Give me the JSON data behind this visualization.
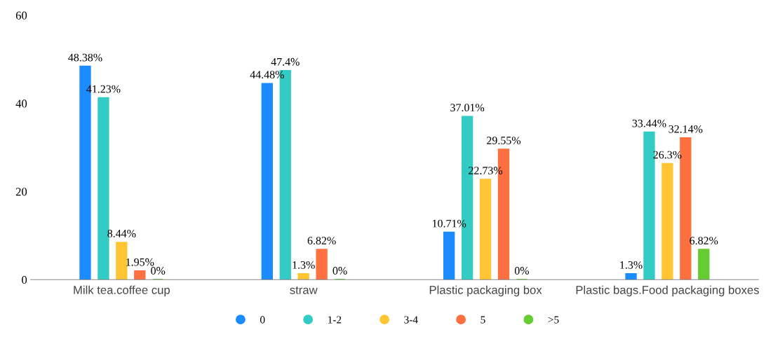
{
  "chart_data": {
    "type": "bar",
    "categories": [
      "Milk tea.coffee cup",
      "straw",
      "Plastic packaging box",
      "Plastic bags.Food packaging boxes"
    ],
    "series": [
      {
        "name": "0",
        "color": "#1a8cff",
        "values": [
          48.38,
          44.48,
          10.71,
          1.3
        ],
        "value_labels": [
          "48.38%",
          "44.48%",
          "10.71%",
          "1.3%"
        ]
      },
      {
        "name": "1-2",
        "color": "#33ccc4",
        "values": [
          41.23,
          47.4,
          37.01,
          33.44
        ],
        "value_labels": [
          "41.23%",
          "47.4%",
          "37.01%",
          "33.44%"
        ]
      },
      {
        "name": "3-4",
        "color": "#ffc533",
        "values": [
          8.44,
          1.3,
          22.73,
          26.3
        ],
        "value_labels": [
          "8.44%",
          "1.3%",
          "22.73%",
          "26.3%"
        ]
      },
      {
        "name": "5",
        "color": "#ff7040",
        "values": [
          1.95,
          6.82,
          29.55,
          32.14
        ],
        "value_labels": [
          "1.95%",
          "6.82%",
          "29.55%",
          "32.14%"
        ]
      },
      {
        "name": ">5",
        "color": "#66cc33",
        "values": [
          0,
          0,
          0,
          6.82
        ],
        "value_labels": [
          "0%",
          "0%",
          "0%",
          "6.82%"
        ]
      }
    ],
    "ylim": [
      0,
      60
    ],
    "yticks": [
      0,
      20,
      40,
      60
    ],
    "grid": false,
    "legend": "bottom"
  }
}
